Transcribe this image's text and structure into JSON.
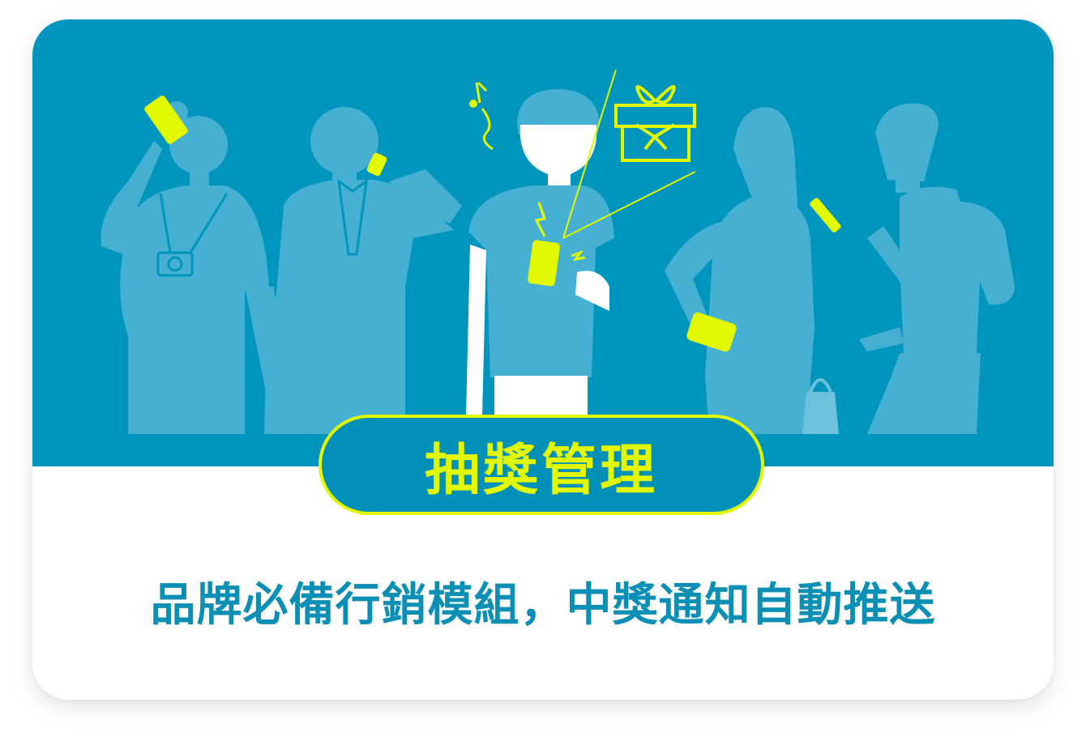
{
  "card": {
    "title": "抽獎管理",
    "subtitle": "品牌必備行銷模組，中獎通知自動推送"
  },
  "colors": {
    "hero_background": "#0095bd",
    "figure": "#4fb7d6",
    "accent_yellow": "#e2f800",
    "subtitle_text": "#0c8fb5"
  }
}
